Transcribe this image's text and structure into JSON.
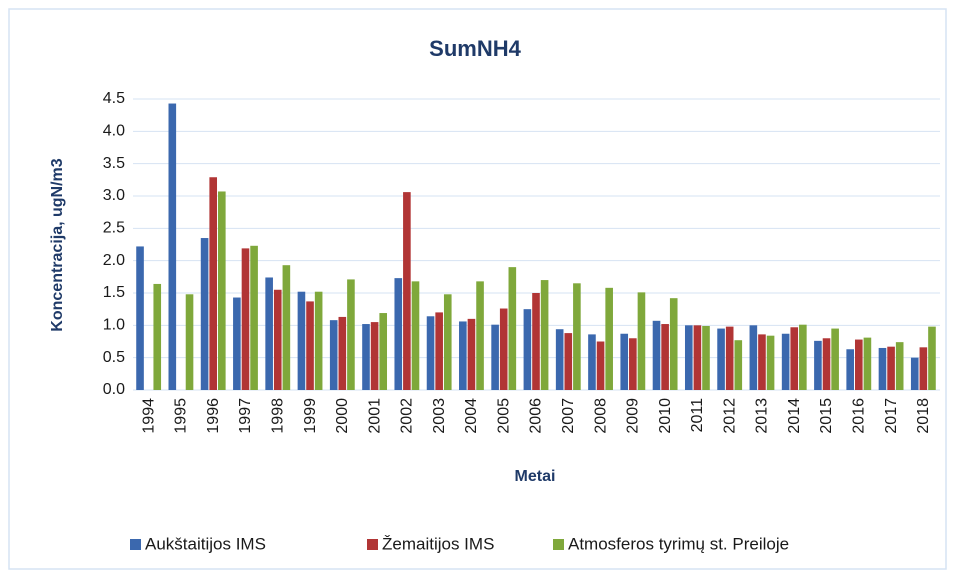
{
  "chart_data": {
    "type": "bar",
    "title": "SumNH4",
    "x_label": "Metai",
    "y_label": "Koncentracija, ugN/m3",
    "categories": [
      "1994",
      "1995",
      "1996",
      "1997",
      "1998",
      "1999",
      "2000",
      "2001",
      "2002",
      "2003",
      "2004",
      "2005",
      "2006",
      "2007",
      "2008",
      "2009",
      "2010",
      "2011",
      "2012",
      "2013",
      "2014",
      "2015",
      "2016",
      "2017",
      "2018"
    ],
    "series": [
      {
        "name": "Aukštaitijos IMS",
        "color": "#3b68ae",
        "values": [
          2.22,
          4.43,
          2.35,
          1.43,
          1.74,
          1.52,
          1.08,
          1.02,
          1.73,
          1.14,
          1.06,
          1.01,
          1.25,
          0.94,
          0.86,
          0.87,
          1.07,
          1.0,
          0.95,
          1.0,
          0.87,
          0.76,
          0.63,
          0.65,
          0.5
        ]
      },
      {
        "name": "Žemaitijos IMS",
        "color": "#b13535",
        "values": [
          null,
          null,
          3.29,
          2.19,
          1.55,
          1.37,
          1.13,
          1.05,
          3.06,
          1.2,
          1.1,
          1.26,
          1.5,
          0.88,
          0.75,
          0.8,
          1.02,
          1.0,
          0.98,
          0.86,
          0.97,
          0.8,
          0.78,
          0.67,
          0.66
        ]
      },
      {
        "name": "Atmosferos tyrimų st. Preiloje",
        "color": "#7fa83b",
        "values": [
          1.64,
          1.48,
          3.07,
          2.23,
          1.93,
          1.52,
          1.71,
          1.19,
          1.68,
          1.48,
          1.68,
          1.9,
          1.7,
          1.65,
          1.58,
          1.51,
          1.42,
          0.99,
          0.77,
          0.84,
          1.01,
          0.95,
          0.81,
          0.74,
          0.98
        ]
      }
    ],
    "ylim": [
      0,
      4.5
    ],
    "yticks": [
      {
        "value": 0,
        "label": "0.0"
      },
      0.5,
      {
        "value": 1,
        "label": "1.0"
      },
      1.5,
      {
        "value": 2,
        "label": "2.0"
      },
      2.5,
      {
        "value": 3,
        "label": "3.0"
      },
      3.5,
      {
        "value": 4,
        "label": "4.0"
      },
      4.5
    ],
    "grid": true,
    "legend": "bottom"
  }
}
